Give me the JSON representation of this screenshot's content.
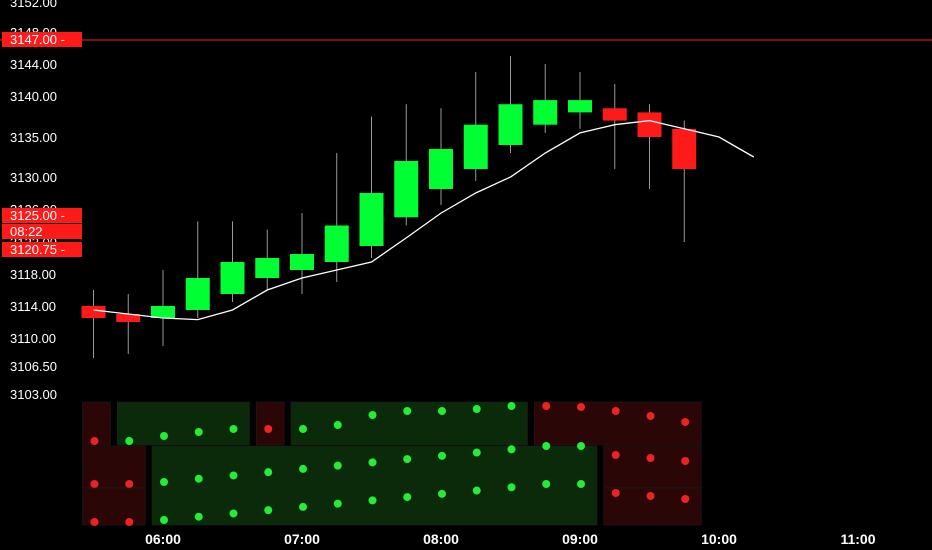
{
  "colors": {
    "background": "#000000",
    "bull": "#00ff33",
    "bear": "#ff1a1a",
    "wick": "#9a9a9a",
    "ma_line": "#ffffff",
    "price_line": "#ff2020",
    "tag_bg": "#ff1a1a",
    "panel_bull_bg": "#0a2a0a",
    "panel_bear_bg": "#2a0606",
    "dot_bull": "#22ee33",
    "dot_bear": "#ee2222"
  },
  "chart_data": {
    "type": "candlestick",
    "ylim": [
      3103,
      3152
    ],
    "xlim": [
      "05:24",
      "11:24"
    ],
    "y_ticks": [
      "3103.00",
      "3106.50",
      "3110.00",
      "3114.00",
      "3118.00",
      "3122.00",
      "3126.00",
      "3130.00",
      "3135.00",
      "3140.00",
      "3144.00",
      "3148.00",
      "3152.00"
    ],
    "x_ticks": [
      "06:00",
      "07:00",
      "08:00",
      "09:00",
      "10:00",
      "11:00"
    ],
    "candles": [
      {
        "time": "05:30",
        "open": 3114.0,
        "high": 3116.0,
        "low": 3107.5,
        "close": 3112.5
      },
      {
        "time": "05:45",
        "open": 3113.0,
        "high": 3115.5,
        "low": 3108.0,
        "close": 3112.0
      },
      {
        "time": "06:00",
        "open": 3112.5,
        "high": 3118.5,
        "low": 3109.0,
        "close": 3114.0
      },
      {
        "time": "06:15",
        "open": 3113.5,
        "high": 3124.5,
        "low": 3112.5,
        "close": 3117.5
      },
      {
        "time": "06:30",
        "open": 3115.5,
        "high": 3124.5,
        "low": 3114.5,
        "close": 3119.5
      },
      {
        "time": "06:45",
        "open": 3117.5,
        "high": 3123.5,
        "low": 3116.0,
        "close": 3120.0
      },
      {
        "time": "07:00",
        "open": 3118.5,
        "high": 3125.5,
        "low": 3115.5,
        "close": 3120.5
      },
      {
        "time": "07:15",
        "open": 3119.5,
        "high": 3133.0,
        "low": 3117.0,
        "close": 3124.0
      },
      {
        "time": "07:30",
        "open": 3121.5,
        "high": 3137.5,
        "low": 3120.0,
        "close": 3128.0
      },
      {
        "time": "07:45",
        "open": 3125.0,
        "high": 3139.0,
        "low": 3124.0,
        "close": 3132.0
      },
      {
        "time": "08:00",
        "open": 3128.5,
        "high": 3138.5,
        "low": 3126.5,
        "close": 3133.5
      },
      {
        "time": "08:15",
        "open": 3131.0,
        "high": 3143.0,
        "low": 3129.5,
        "close": 3136.5
      },
      {
        "time": "08:30",
        "open": 3134.0,
        "high": 3145.0,
        "low": 3133.0,
        "close": 3139.0
      },
      {
        "time": "08:45",
        "open": 3136.5,
        "high": 3144.0,
        "low": 3135.5,
        "close": 3139.5
      },
      {
        "time": "09:00",
        "open": 3138.0,
        "high": 3143.0,
        "low": 3136.0,
        "close": 3139.5
      },
      {
        "time": "09:15",
        "open": 3138.5,
        "high": 3141.5,
        "low": 3131.0,
        "close": 3137.0
      },
      {
        "time": "09:30",
        "open": 3138.0,
        "high": 3139.0,
        "low": 3128.5,
        "close": 3135.0
      },
      {
        "time": "09:45",
        "open": 3136.0,
        "high": 3137.0,
        "low": 3122.0,
        "close": 3131.0
      }
    ],
    "moving_average": [
      {
        "time": "05:30",
        "value": 3113.5
      },
      {
        "time": "05:45",
        "value": 3113.0
      },
      {
        "time": "06:00",
        "value": 3112.5
      },
      {
        "time": "06:15",
        "value": 3112.3
      },
      {
        "time": "06:30",
        "value": 3113.5
      },
      {
        "time": "06:45",
        "value": 3116.0
      },
      {
        "time": "07:00",
        "value": 3117.5
      },
      {
        "time": "07:15",
        "value": 3118.5
      },
      {
        "time": "07:30",
        "value": 3119.5
      },
      {
        "time": "07:45",
        "value": 3122.5
      },
      {
        "time": "08:00",
        "value": 3125.5
      },
      {
        "time": "08:15",
        "value": 3128.0
      },
      {
        "time": "08:30",
        "value": 3130.0
      },
      {
        "time": "08:45",
        "value": 3133.0
      },
      {
        "time": "09:00",
        "value": 3135.5
      },
      {
        "time": "09:15",
        "value": 3136.5
      },
      {
        "time": "09:30",
        "value": 3137.0
      },
      {
        "time": "09:45",
        "value": 3136.0
      },
      {
        "time": "10:00",
        "value": 3135.0
      },
      {
        "time": "10:15",
        "value": 3132.5
      }
    ],
    "price_line": 3147.0,
    "price_tags": [
      {
        "label": "3147.00 -",
        "value": 3147.0
      },
      {
        "label": "3125.00 -",
        "value": 3124.5
      },
      {
        "label": "08:22",
        "value": 3122.5
      },
      {
        "label": "3120.75 -",
        "value": 3120.5
      }
    ],
    "indicator_rows": [
      [
        "bear",
        "bull",
        "bull",
        "bull",
        "bull",
        "bear",
        "bull",
        "bull",
        "bull",
        "bull",
        "bull",
        "bull",
        "bull",
        "bear",
        "bear",
        "bear",
        "bear",
        "bear"
      ],
      [
        "bear",
        "bear",
        "bull",
        "bull",
        "bull",
        "bull",
        "bull",
        "bull",
        "bull",
        "bull",
        "bull",
        "bull",
        "bull",
        "bull",
        "bull",
        "bear",
        "bear",
        "bear"
      ],
      [
        "bear",
        "bear",
        "bull",
        "bull",
        "bull",
        "bull",
        "bull",
        "bull",
        "bull",
        "bull",
        "bull",
        "bull",
        "bull",
        "bull",
        "bull",
        "bear",
        "bear",
        "bear"
      ]
    ]
  }
}
